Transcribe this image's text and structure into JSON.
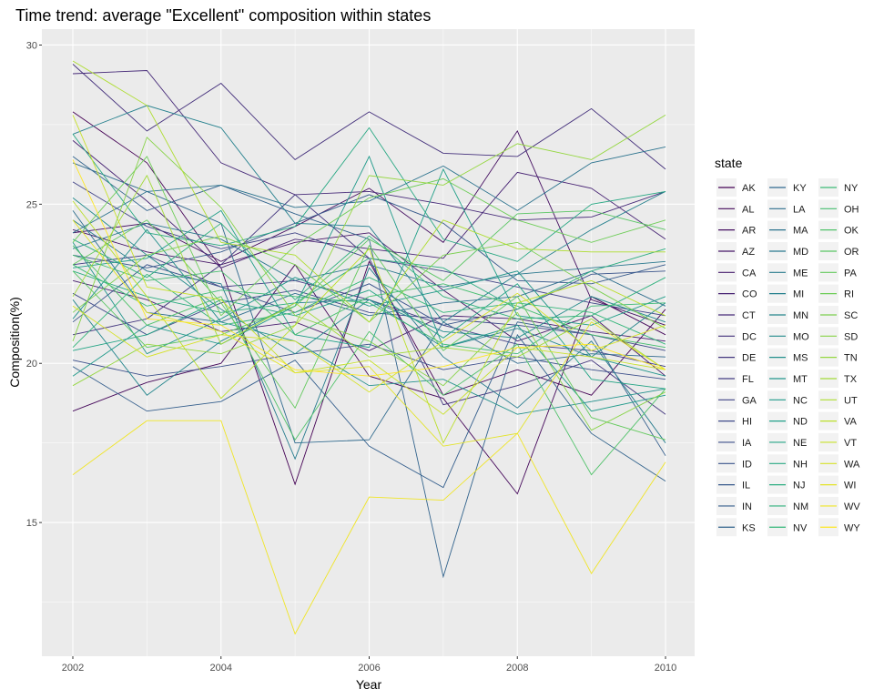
{
  "chart_data": {
    "type": "line",
    "title": "Time trend: average \"Excellent\" composition within states",
    "xlabel": "Year",
    "ylabel": "Composition(%)",
    "x": [
      2002,
      2003,
      2004,
      2005,
      2006,
      2007,
      2008,
      2009,
      2010
    ],
    "xlim": [
      2002,
      2010
    ],
    "ylim": [
      10.8,
      30.5
    ],
    "x_ticks": [
      2002,
      2004,
      2006,
      2008,
      2010
    ],
    "y_ticks": [
      15,
      20,
      25,
      30
    ],
    "grid": true,
    "background": "#EBEBEB",
    "legend": {
      "title": "state",
      "position": "right",
      "columns": 3
    },
    "palette": "viridis",
    "series": [
      {
        "name": "AK",
        "values": [
          27.9,
          26.3,
          23.0,
          16.2,
          23.2,
          19.0,
          19.8,
          19.0,
          21.7
        ]
      },
      {
        "name": "AL",
        "values": [
          18.5,
          19.4,
          20.0,
          23.1,
          19.6,
          18.9,
          15.9,
          22.1,
          20.9
        ]
      },
      {
        "name": "AR",
        "values": [
          24.1,
          24.4,
          23.2,
          24.3,
          25.5,
          23.8,
          27.3,
          22.0,
          21.2
        ]
      },
      {
        "name": "AZ",
        "values": [
          24.2,
          23.5,
          23.1,
          23.8,
          24.1,
          22.3,
          20.7,
          21.5,
          19.6
        ]
      },
      {
        "name": "CA",
        "values": [
          22.6,
          22.0,
          21.0,
          21.3,
          20.4,
          21.5,
          21.4,
          21.0,
          20.7
        ]
      },
      {
        "name": "CO",
        "values": [
          27.0,
          25.1,
          23.0,
          23.9,
          23.6,
          23.3,
          26.0,
          25.5,
          23.9
        ]
      },
      {
        "name": "CT",
        "values": [
          29.1,
          29.2,
          26.3,
          25.3,
          25.4,
          25.0,
          24.5,
          24.6,
          25.4
        ]
      },
      {
        "name": "DC",
        "values": [
          29.4,
          27.3,
          28.8,
          26.4,
          27.9,
          26.6,
          26.5,
          28.0,
          26.1
        ]
      },
      {
        "name": "DE",
        "values": [
          20.9,
          21.4,
          23.1,
          25.3,
          23.3,
          18.7,
          19.3,
          20.1,
          18.4
        ]
      },
      {
        "name": "FL",
        "values": [
          23.1,
          23.4,
          22.4,
          22.6,
          22.0,
          21.2,
          20.6,
          20.4,
          19.9
        ]
      },
      {
        "name": "GA",
        "values": [
          25.7,
          24.3,
          23.6,
          24.1,
          23.3,
          22.9,
          22.4,
          21.9,
          21.5
        ]
      },
      {
        "name": "HI",
        "values": [
          22.2,
          20.9,
          21.9,
          22.3,
          21.6,
          21.4,
          21.2,
          20.9,
          20.4
        ]
      },
      {
        "name": "IA",
        "values": [
          20.1,
          19.6,
          19.9,
          20.3,
          20.6,
          19.8,
          20.2,
          19.8,
          19.5
        ]
      },
      {
        "name": "ID",
        "values": [
          21.3,
          23.1,
          22.4,
          21.6,
          22.5,
          21.2,
          21.7,
          22.8,
          22.9
        ]
      },
      {
        "name": "IL",
        "values": [
          23.4,
          23.0,
          23.5,
          24.4,
          25.3,
          24.4,
          22.6,
          22.5,
          23.1
        ]
      },
      {
        "name": "IN",
        "values": [
          19.9,
          18.5,
          18.8,
          20.1,
          17.4,
          16.1,
          21.3,
          20.9,
          17.1
        ]
      },
      {
        "name": "KS",
        "values": [
          26.5,
          24.8,
          25.6,
          24.7,
          23.9,
          13.3,
          20.9,
          17.8,
          16.3
        ]
      },
      {
        "name": "KY",
        "values": [
          26.3,
          25.4,
          24.4,
          17.5,
          17.6,
          21.3,
          20.0,
          20.3,
          20.2
        ]
      },
      {
        "name": "LA",
        "values": [
          24.8,
          21.6,
          21.3,
          22.2,
          21.5,
          21.9,
          22.1,
          22.9,
          21.8
        ]
      },
      {
        "name": "MA",
        "values": [
          24.1,
          25.4,
          25.6,
          24.9,
          25.1,
          26.2,
          24.8,
          26.3,
          26.8
        ]
      },
      {
        "name": "MD",
        "values": [
          23.6,
          24.4,
          23.9,
          22.6,
          23.1,
          22.4,
          22.8,
          23.0,
          23.2
        ]
      },
      {
        "name": "ME",
        "values": [
          24.5,
          22.9,
          22.5,
          17.0,
          23.0,
          20.2,
          18.6,
          20.7,
          17.5
        ]
      },
      {
        "name": "MI",
        "values": [
          27.2,
          28.1,
          27.4,
          24.4,
          24.3,
          21.3,
          22.8,
          24.2,
          25.4
        ]
      },
      {
        "name": "MN",
        "values": [
          22.0,
          19.0,
          20.7,
          21.9,
          22.0,
          20.5,
          21.1,
          20.2,
          21.9
        ]
      },
      {
        "name": "MO",
        "values": [
          25.2,
          23.4,
          21.7,
          20.3,
          22.0,
          21.0,
          20.8,
          22.1,
          21.3
        ]
      },
      {
        "name": "MS",
        "values": [
          21.4,
          24.2,
          21.3,
          20.7,
          19.3,
          19.5,
          18.4,
          18.8,
          19.2
        ]
      },
      {
        "name": "MT",
        "values": [
          23.8,
          20.3,
          21.4,
          22.7,
          21.8,
          22.3,
          22.9,
          20.2,
          19.6
        ]
      },
      {
        "name": "NC",
        "values": [
          19.6,
          21.2,
          20.6,
          21.8,
          26.5,
          20.5,
          21.2,
          18.5,
          19.0
        ]
      },
      {
        "name": "ND",
        "values": [
          23.0,
          23.3,
          24.8,
          20.9,
          20.5,
          26.1,
          21.5,
          21.2,
          22.1
        ]
      },
      {
        "name": "NE",
        "values": [
          20.4,
          20.9,
          22.0,
          21.5,
          22.3,
          20.8,
          22.5,
          19.5,
          19.2
        ]
      },
      {
        "name": "NH",
        "values": [
          27.2,
          24.1,
          23.7,
          24.3,
          27.4,
          23.9,
          23.2,
          25.0,
          25.4
        ]
      },
      {
        "name": "NJ",
        "values": [
          22.9,
          22.1,
          21.6,
          21.9,
          23.3,
          23.0,
          21.7,
          22.9,
          23.6
        ]
      },
      {
        "name": "NM",
        "values": [
          23.9,
          22.7,
          24.4,
          22.0,
          24.0,
          22.1,
          21.4,
          21.5,
          22.7
        ]
      },
      {
        "name": "NV",
        "values": [
          20.5,
          22.8,
          21.2,
          21.6,
          22.7,
          21.6,
          21.9,
          21.6,
          20.6
        ]
      },
      {
        "name": "NY",
        "values": [
          23.1,
          21.8,
          22.3,
          22.1,
          21.9,
          20.6,
          20.3,
          21.8,
          21.9
        ]
      },
      {
        "name": "OH",
        "values": [
          23.4,
          22.6,
          22.9,
          20.9,
          22.1,
          22.5,
          21.8,
          20.9,
          20.5
        ]
      },
      {
        "name": "OK",
        "values": [
          23.7,
          21.2,
          22.1,
          17.6,
          21.0,
          19.0,
          20.6,
          16.5,
          19.2
        ]
      },
      {
        "name": "OR",
        "values": [
          22.9,
          20.5,
          20.9,
          21.8,
          23.9,
          22.6,
          24.7,
          24.8,
          24.2
        ]
      },
      {
        "name": "PA",
        "values": [
          23.1,
          24.5,
          21.9,
          18.6,
          23.7,
          20.4,
          22.1,
          18.3,
          17.6
        ]
      },
      {
        "name": "RI",
        "values": [
          23.8,
          26.5,
          21.5,
          23.7,
          25.2,
          25.8,
          24.5,
          23.8,
          24.5
        ]
      },
      {
        "name": "SC",
        "values": [
          21.6,
          23.4,
          24.0,
          23.1,
          21.3,
          23.4,
          23.8,
          22.4,
          21.1
        ]
      },
      {
        "name": "SD",
        "values": [
          20.7,
          27.1,
          24.9,
          21.5,
          20.7,
          19.3,
          21.6,
          17.9,
          19.1
        ]
      },
      {
        "name": "TN",
        "values": [
          19.3,
          20.6,
          20.3,
          21.2,
          25.9,
          25.6,
          26.9,
          26.4,
          27.8
        ]
      },
      {
        "name": "TX",
        "values": [
          22.1,
          25.9,
          20.6,
          21.9,
          20.2,
          20.5,
          20.2,
          21.4,
          19.8
        ]
      },
      {
        "name": "UT",
        "values": [
          29.5,
          28.1,
          23.8,
          23.4,
          21.3,
          24.5,
          23.6,
          23.5,
          23.5
        ]
      },
      {
        "name": "VA",
        "values": [
          25.1,
          22.1,
          18.9,
          21.2,
          23.6,
          17.5,
          21.9,
          22.6,
          21.5
        ]
      },
      {
        "name": "VT",
        "values": [
          27.8,
          22.4,
          22.0,
          19.7,
          20.1,
          18.4,
          20.5,
          20.2,
          19.8
        ]
      },
      {
        "name": "WA",
        "values": [
          21.8,
          20.2,
          20.9,
          20.7,
          19.1,
          20.7,
          22.2,
          20.4,
          21.2
        ]
      },
      {
        "name": "WI",
        "values": [
          24.5,
          21.6,
          21.0,
          19.7,
          19.9,
          17.4,
          17.8,
          21.3,
          19.8
        ]
      },
      {
        "name": "WV",
        "values": [
          16.5,
          18.2,
          18.2,
          11.5,
          15.8,
          15.7,
          17.8,
          13.4,
          16.9
        ]
      },
      {
        "name": "WY",
        "values": [
          26.4,
          21.4,
          21.2,
          19.8,
          19.6,
          19.9,
          20.5,
          20.6,
          19.8
        ]
      }
    ]
  }
}
